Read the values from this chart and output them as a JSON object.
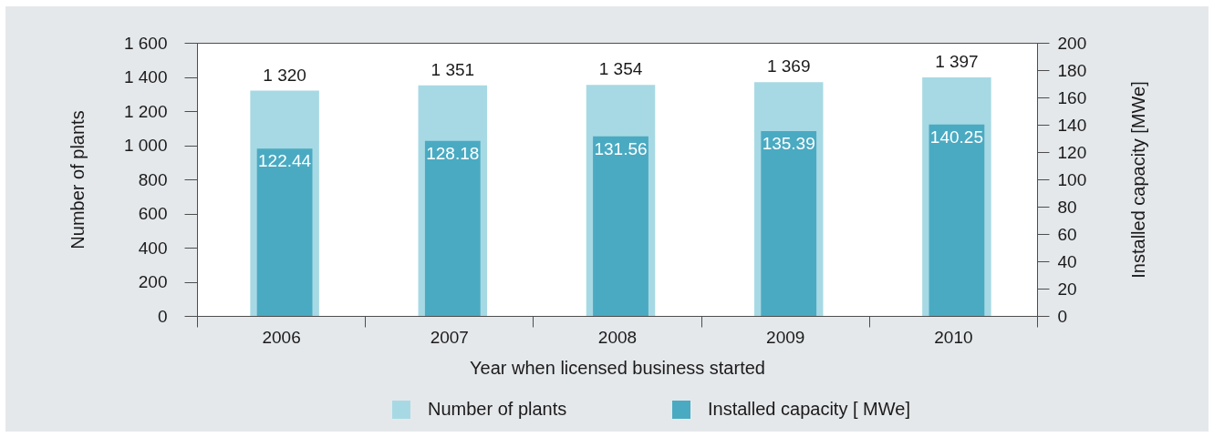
{
  "chart_data": {
    "type": "bar",
    "categories": [
      "2006",
      "2007",
      "2008",
      "2009",
      "2010"
    ],
    "xlabel": "Year when licensed business started",
    "ylabel": "Number of plants",
    "y2label": "Installed capacity [MWe]",
    "series": [
      {
        "name": "Number of plants",
        "color": "#a7d9e4",
        "values": [
          1320,
          1351,
          1354,
          1369,
          1397
        ],
        "value_labels": [
          "1 320",
          "1 351",
          "1 354",
          "1 369",
          "1 397"
        ]
      },
      {
        "name": "Installed capacity [ MWe]",
        "color": "#4aaac2",
        "axis": "y2",
        "values": [
          122.44,
          128.18,
          131.56,
          135.39,
          140.25
        ],
        "value_labels": [
          "122.44",
          "128.18",
          "131.56",
          "135.39",
          "140.25"
        ]
      }
    ],
    "ylim": [
      0,
      1600
    ],
    "yticks": [
      0,
      200,
      400,
      600,
      800,
      {
        "value": 1000,
        "label": "1 000"
      },
      {
        "value": 1200,
        "label": "1 200"
      },
      {
        "value": 1400,
        "label": "1 400"
      },
      {
        "value": 1600,
        "label": "1 600"
      }
    ],
    "y2lim": [
      0,
      200
    ],
    "y2ticks": [
      0,
      20,
      40,
      60,
      80,
      100,
      120,
      140,
      160,
      180,
      200
    ],
    "legend": "bottom"
  }
}
